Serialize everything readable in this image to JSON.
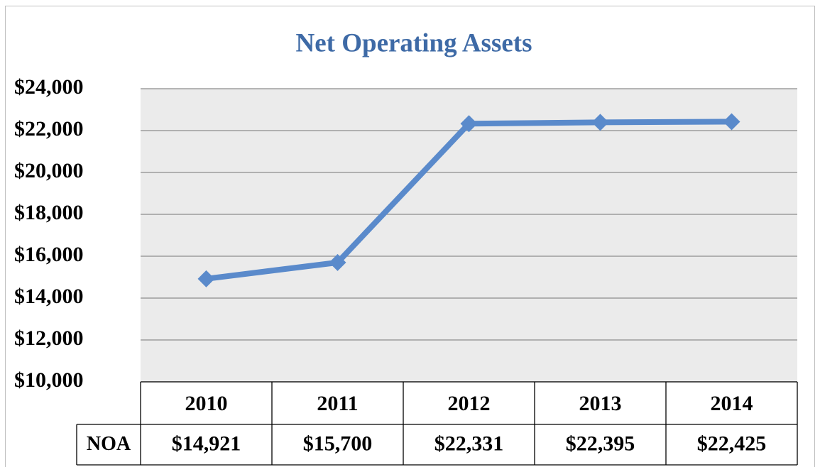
{
  "chart_data": {
    "type": "line",
    "title": "Net Operating Assets",
    "categories": [
      "2010",
      "2011",
      "2012",
      "2013",
      "2014"
    ],
    "series": [
      {
        "name": "NOA",
        "color": "#5a8acb",
        "values": [
          14921,
          15700,
          22331,
          22395,
          22425
        ],
        "value_labels": [
          "$14,921",
          "$15,700",
          "$22,331",
          "$22,395",
          "$22,425"
        ]
      }
    ],
    "ylim": [
      10000,
      24000
    ],
    "yticks": [
      {
        "value": 10000,
        "label": "$10,000"
      },
      {
        "value": 12000,
        "label": "$12,000"
      },
      {
        "value": 14000,
        "label": "$14,000"
      },
      {
        "value": 16000,
        "label": "$16,000"
      },
      {
        "value": 18000,
        "label": "$18,000"
      },
      {
        "value": 20000,
        "label": "$20,000"
      },
      {
        "value": 22000,
        "label": "$22,000"
      },
      {
        "value": 24000,
        "label": "$24,000"
      }
    ],
    "grid": true
  }
}
